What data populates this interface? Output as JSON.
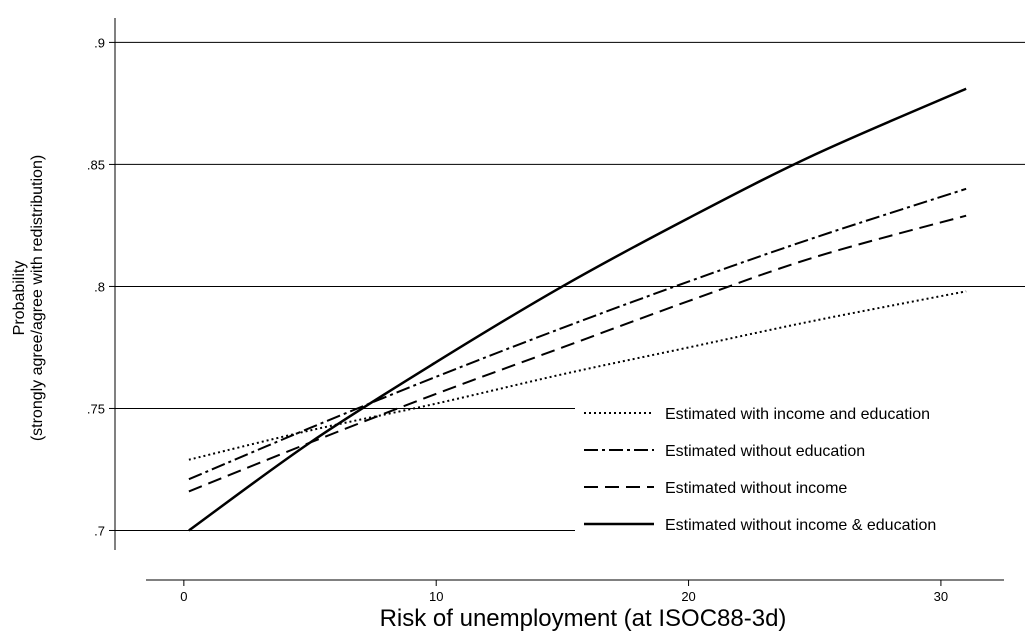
{
  "chart_data": {
    "type": "line",
    "xlabel": "Risk of unemployment (at ISOC88-3d)",
    "ylabel_lines": [
      "Probability",
      "(strongly agree/agree with redistribution)"
    ],
    "xlim": [
      -1.5,
      32.5
    ],
    "ylim": [
      0.692,
      0.91
    ],
    "x_ticks": [
      0,
      10,
      20,
      30
    ],
    "x_tick_labels": [
      "0",
      "10",
      "20",
      "30"
    ],
    "y_ticks": [
      0.7,
      0.75,
      0.8,
      0.85,
      0.9
    ],
    "y_tick_labels": [
      ".7",
      ".75",
      ".8",
      ".85",
      ".9"
    ],
    "grid": "horizontal",
    "legend_position": "bottom-right",
    "x": [
      0.2,
      5,
      10,
      15,
      20,
      25,
      31
    ],
    "series": [
      {
        "name": "Estimated with income and education",
        "style": "dotted",
        "values": [
          0.729,
          0.741,
          0.752,
          0.764,
          0.775,
          0.786,
          0.798
        ]
      },
      {
        "name": "Estimated without education",
        "style": "dashdot",
        "values": [
          0.721,
          0.742,
          0.763,
          0.783,
          0.802,
          0.82,
          0.84
        ]
      },
      {
        "name": "Estimated without income",
        "style": "dashed",
        "values": [
          0.716,
          0.736,
          0.756,
          0.775,
          0.794,
          0.812,
          0.829
        ]
      },
      {
        "name": "Estimated without income & education",
        "style": "solid",
        "values": [
          0.7,
          0.736,
          0.769,
          0.8,
          0.828,
          0.854,
          0.881
        ]
      }
    ]
  }
}
